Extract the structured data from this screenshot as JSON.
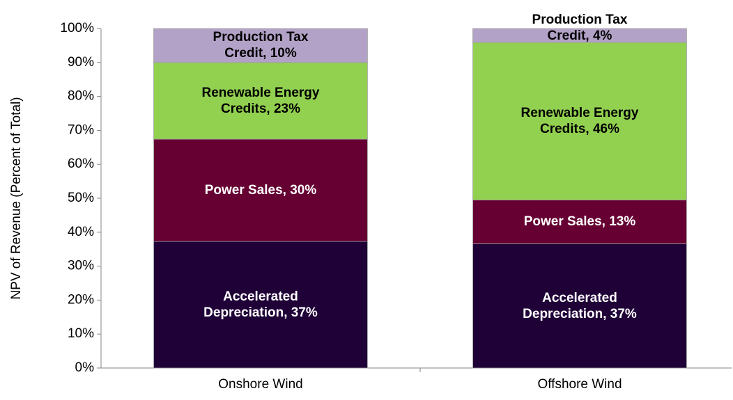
{
  "chart_data": {
    "type": "stacked_bar",
    "y_label": "NPV of Revenue (Percent of Total)",
    "categories": [
      "Onshore Wind",
      "Offshore Wind"
    ],
    "series": [
      {
        "name": "Accelerated Depreciation",
        "color": "#1f0037",
        "values": [
          37.3,
          36.6
        ],
        "value_labels": [
          "Accelerated Depreciation, 37%",
          "Accelerated Depreciation, 37%"
        ]
      },
      {
        "name": "Power Sales",
        "color": "#660033",
        "values": [
          30.1,
          12.9
        ],
        "value_labels": [
          "Power Sales, 30%",
          "Power Sales, 13%"
        ]
      },
      {
        "name": "Renewable Energy Credits",
        "color": "#92d050",
        "values": [
          22.6,
          46.4
        ],
        "value_labels": [
          "Renewable Energy Credits, 23%",
          "Renewable Energy Credits, 46%"
        ]
      },
      {
        "name": "Production Tax Credit",
        "color": "#b3a2c7",
        "values": [
          10,
          4.1
        ],
        "value_labels": [
          "Production Tax Credit, 10%",
          "Production Tax Credit, 4%"
        ]
      }
    ],
    "ylim": [
      0,
      100
    ],
    "yticks": [
      {
        "value": 0,
        "label": "0%"
      },
      {
        "value": 10,
        "label": "10%"
      },
      {
        "value": 20,
        "label": "20%"
      },
      {
        "value": 30,
        "label": "30%"
      },
      {
        "value": 40,
        "label": "40%"
      },
      {
        "value": 50,
        "label": "50%"
      },
      {
        "value": 60,
        "label": "60%"
      },
      {
        "value": 70,
        "label": "70%"
      },
      {
        "value": 80,
        "label": "80%"
      },
      {
        "value": 90,
        "label": "90%"
      },
      {
        "value": 100,
        "label": "100%"
      }
    ],
    "grid": false
  }
}
